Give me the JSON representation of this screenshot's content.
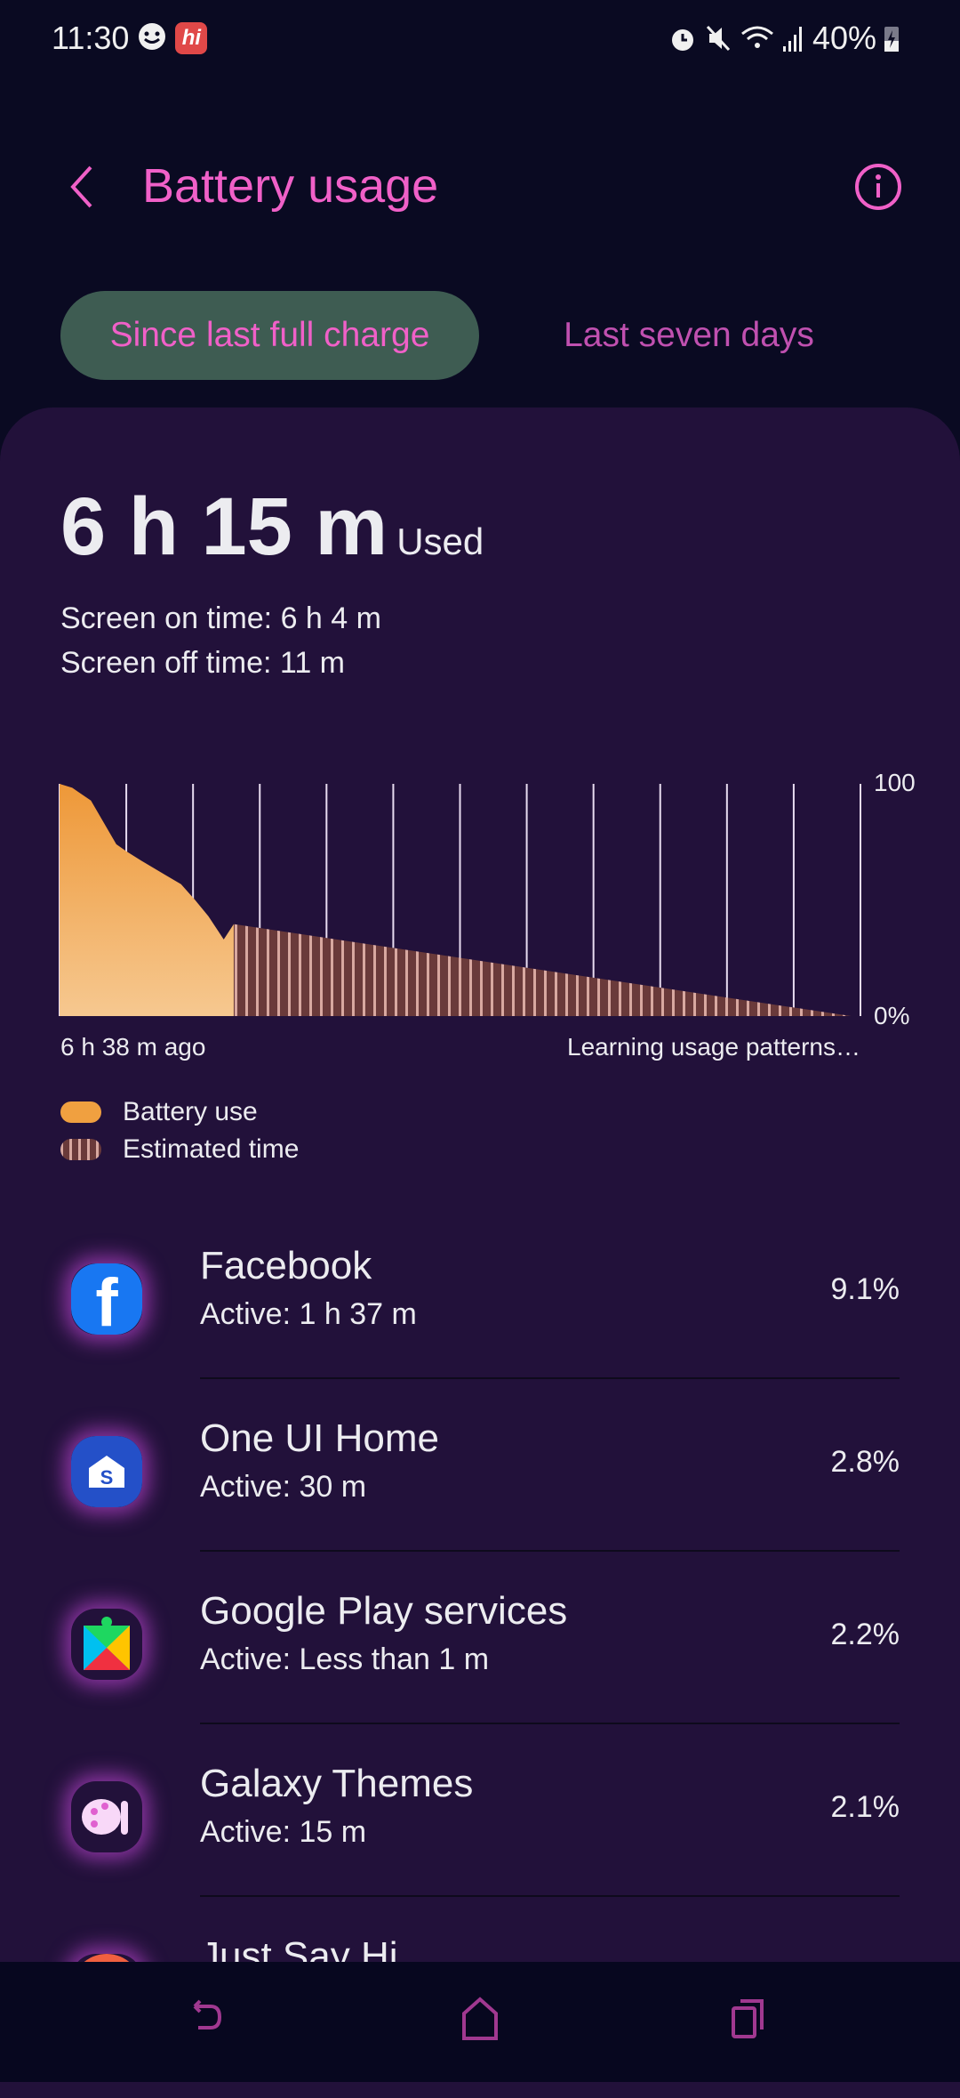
{
  "status_bar": {
    "time": "11:30",
    "battery": "40%",
    "icons": [
      "chat-bubble-icon",
      "hi-app-icon",
      "alarm-icon",
      "mute-icon",
      "wifi-icon",
      "signal-icon",
      "battery-charging-icon"
    ]
  },
  "header": {
    "title": "Battery usage",
    "back_icon": "back-arrow-icon",
    "info_icon": "info-icon"
  },
  "tabs": [
    {
      "label": "Since last full charge",
      "active": true
    },
    {
      "label": "Last seven days",
      "active": false
    }
  ],
  "summary": {
    "total": "6 h 15 m",
    "used_label": "Used",
    "screen_on": "Screen on time: 6 h 4 m",
    "screen_off": "Screen off time: 11 m"
  },
  "chart_data": {
    "type": "area",
    "y_tick_labels": [
      "100",
      "0%"
    ],
    "ylim": [
      0,
      100
    ],
    "x_start_label": "6 h 38 m ago",
    "x_end_label": "Learning usage patterns…",
    "grid_vertical_lines": 13,
    "series": [
      {
        "name": "Battery use",
        "color": "#f0a040",
        "points": [
          [
            0,
            100
          ],
          [
            0.19,
            98.3
          ],
          [
            0.47,
            92.8
          ],
          [
            0.85,
            74
          ],
          [
            1.0,
            71
          ],
          [
            1.22,
            67
          ],
          [
            1.59,
            60.7
          ],
          [
            1.82,
            56.8
          ],
          [
            2.03,
            50
          ],
          [
            2.23,
            43
          ],
          [
            2.46,
            33
          ],
          [
            2.61,
            39.6
          ]
        ]
      },
      {
        "name": "Estimated time",
        "color": "#6a3a3a",
        "points": [
          [
            2.61,
            39.6
          ],
          [
            11.86,
            0
          ]
        ]
      }
    ],
    "xlim": [
      0,
      12
    ]
  },
  "legend": [
    {
      "label": "Battery use"
    },
    {
      "label": "Estimated time"
    }
  ],
  "apps": [
    {
      "name": "Facebook",
      "active": "Active: 1 h 37 m",
      "percent": "9.1%",
      "icon": "facebook-icon"
    },
    {
      "name": "One UI Home",
      "active": "Active: 30 m",
      "percent": "2.8%",
      "icon": "one-ui-home-icon"
    },
    {
      "name": "Google Play services",
      "active": "Active: Less than 1 m",
      "percent": "2.2%",
      "icon": "google-play-services-icon"
    },
    {
      "name": "Galaxy Themes",
      "active": "Active: 15 m",
      "percent": "2.1%",
      "icon": "galaxy-themes-icon"
    },
    {
      "name": "Just Say Hi",
      "active": "",
      "percent": "",
      "icon": "just-say-hi-icon"
    }
  ],
  "colors": {
    "accent": "#f060c8",
    "tab_bg": "#3e5c52",
    "card_bg": "#22113a",
    "page_bg": "#0a0a22"
  }
}
